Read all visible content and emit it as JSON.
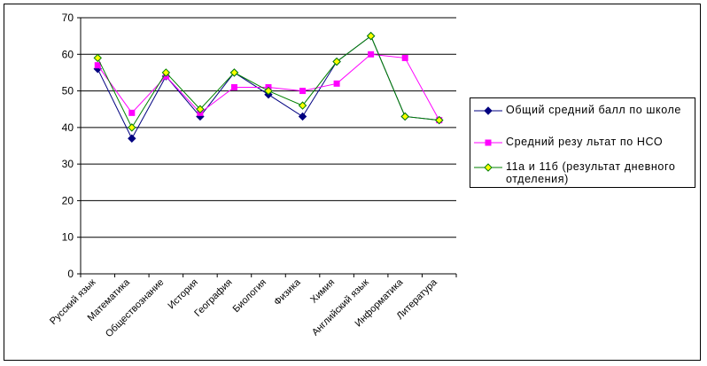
{
  "chart_data": {
    "type": "line",
    "title": "",
    "xlabel": "",
    "ylabel": "",
    "ylim": [
      0,
      70
    ],
    "yticks": [
      0,
      10,
      20,
      30,
      40,
      50,
      60,
      70
    ],
    "grid": true,
    "legend_position": "right",
    "categories": [
      "Русский язык",
      "Математика",
      "Обществознание",
      "История",
      "География",
      "Биология",
      "Физика",
      "Химия",
      "Английский язык",
      "Информатика",
      "Литература"
    ],
    "series": [
      {
        "name": "Общий средний балл по школе",
        "color": "#000080",
        "marker": "diamond",
        "values": [
          56,
          37,
          54,
          43,
          55,
          49,
          43,
          58,
          65,
          43,
          42
        ]
      },
      {
        "name": "Средний резу льтат по НСО",
        "color": "#ff00ff",
        "marker": "square",
        "values": [
          57,
          44,
          54,
          44,
          51,
          51,
          50,
          52,
          60,
          59,
          42
        ]
      },
      {
        "name": "11а и 11б (результат дневного отделения)",
        "color": "#008000",
        "marker_fill": "#ffff00",
        "marker": "diamond",
        "values": [
          59,
          40,
          55,
          45,
          55,
          50,
          46,
          58,
          65,
          43,
          42
        ]
      }
    ]
  }
}
